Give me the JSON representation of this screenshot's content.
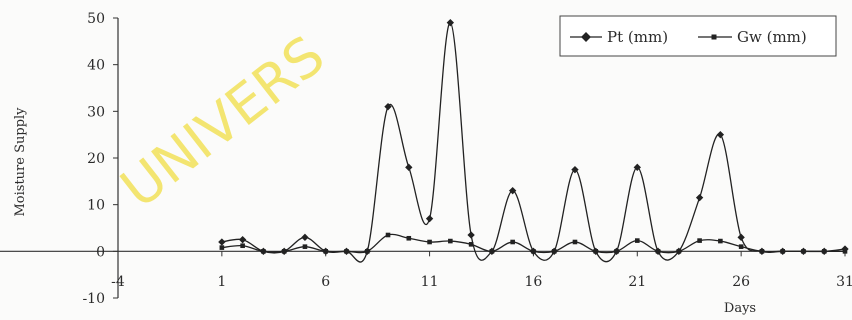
{
  "chart_data": {
    "type": "line",
    "title": "",
    "xlabel": "Days",
    "ylabel": "Moisture Supply",
    "xlim": [
      -4,
      31
    ],
    "ylim": [
      -10,
      50
    ],
    "x_ticks": [
      -4,
      1,
      6,
      11,
      16,
      21,
      26,
      31
    ],
    "x_tick_labels": [
      "-4",
      "1",
      "6",
      "11",
      "16",
      "21",
      "26",
      "31"
    ],
    "y_ticks": [
      -10,
      0,
      10,
      20,
      30,
      40,
      50
    ],
    "y_tick_labels": [
      "-10",
      "0",
      "10",
      "20",
      "30",
      "40",
      "50"
    ],
    "grid": false,
    "legend_position": "top-right",
    "series": [
      {
        "name": "Pt (mm)",
        "marker": "diamond",
        "color": "#222222",
        "x": [
          1,
          2,
          3,
          4,
          5,
          6,
          7,
          8,
          9,
          10,
          11,
          12,
          13,
          14,
          15,
          16,
          17,
          18,
          19,
          20,
          21,
          22,
          23,
          24,
          25,
          26,
          27,
          28,
          29,
          30,
          31
        ],
        "values": [
          2,
          2.5,
          0,
          0,
          3,
          0,
          0,
          0,
          31,
          18,
          7,
          49,
          3.5,
          0,
          13,
          0,
          0,
          17.5,
          0,
          0,
          18,
          0,
          0,
          11.5,
          25,
          3,
          0,
          0,
          0,
          0,
          0.5
        ]
      },
      {
        "name": "Gw (mm)",
        "marker": "square",
        "color": "#222222",
        "x": [
          1,
          2,
          3,
          4,
          5,
          6,
          7,
          8,
          9,
          10,
          11,
          12,
          13,
          14,
          15,
          16,
          17,
          18,
          19,
          20,
          21,
          22,
          23,
          24,
          25,
          26,
          27,
          28,
          29,
          30,
          31
        ],
        "values": [
          0.8,
          1.2,
          0,
          0,
          1,
          0,
          0,
          0,
          3.5,
          2.8,
          2,
          2.2,
          1.5,
          0,
          2,
          0,
          0,
          2,
          0,
          0,
          2.3,
          0,
          0,
          2.3,
          2.2,
          1,
          0,
          0,
          0,
          0,
          0
        ]
      }
    ]
  },
  "watermark": {
    "text": "UNIVERS",
    "color": "#f2e25a"
  }
}
